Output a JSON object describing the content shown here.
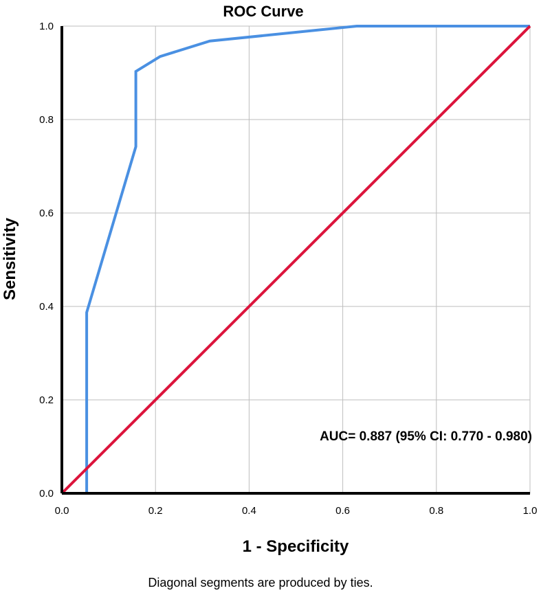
{
  "chart_data": {
    "type": "line",
    "title": "ROC Curve",
    "xlabel": "1 - Specificity",
    "ylabel": "Sensitivity",
    "xlim": [
      0,
      1
    ],
    "ylim": [
      0,
      1
    ],
    "grid": true,
    "x_ticks": [
      "0.0",
      "0.2",
      "0.4",
      "0.6",
      "0.8",
      "1.0"
    ],
    "y_ticks": [
      "0.0",
      "0.2",
      "0.4",
      "0.6",
      "0.8",
      "1.0"
    ],
    "series": [
      {
        "color": "#4a90e2",
        "points": [
          [
            0.0,
            0.0
          ],
          [
            0.053,
            0.0
          ],
          [
            0.053,
            0.387
          ],
          [
            0.158,
            0.742
          ],
          [
            0.158,
            0.903
          ],
          [
            0.21,
            0.935
          ],
          [
            0.316,
            0.968
          ],
          [
            0.63,
            1.0
          ],
          [
            1.0,
            1.0
          ]
        ]
      },
      {
        "color": "#dc143c",
        "points": [
          [
            0.0,
            0.0
          ],
          [
            1.0,
            1.0
          ]
        ]
      }
    ],
    "annotation": "AUC= 0.887 (95% CI: 0.770 - 0.980)",
    "footnote": "Diagonal segments are produced by ties."
  }
}
